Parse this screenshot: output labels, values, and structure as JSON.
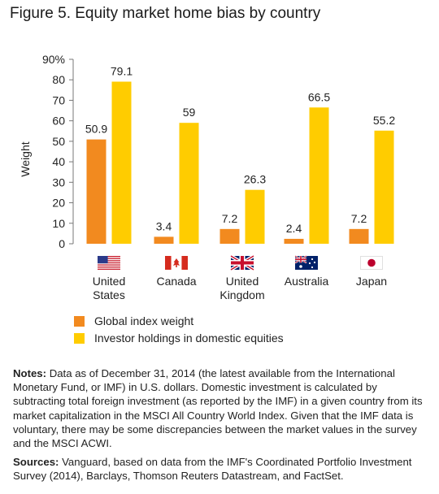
{
  "figure": {
    "title": "Figure 5. Equity market home bias by country"
  },
  "chart_data": {
    "type": "bar",
    "ylabel": "Weight",
    "ylim": [
      0,
      90
    ],
    "yticks": [
      "0",
      "10",
      "20",
      "30",
      "40",
      "50",
      "60",
      "70",
      "80",
      "90%"
    ],
    "categories": [
      {
        "lines": [
          "United",
          "States"
        ],
        "flag": "us-flag-icon"
      },
      {
        "lines": [
          "Canada"
        ],
        "flag": "canada-flag-icon"
      },
      {
        "lines": [
          "United",
          "Kingdom"
        ],
        "flag": "uk-flag-icon"
      },
      {
        "lines": [
          "Australia"
        ],
        "flag": "australia-flag-icon"
      },
      {
        "lines": [
          "Japan"
        ],
        "flag": "japan-flag-icon"
      }
    ],
    "series": [
      {
        "name": "Global index weight",
        "color": "#f28a1f",
        "values": [
          50.9,
          3.4,
          7.2,
          2.4,
          7.2
        ],
        "labels": [
          "50.9",
          "3.4",
          "7.2",
          "2.4",
          "7.2"
        ]
      },
      {
        "name": "Investor holdings in domestic equities",
        "color": "#ffcc00",
        "values": [
          79.1,
          59,
          26.3,
          66.5,
          55.2
        ],
        "labels": [
          "79.1",
          "59",
          "26.3",
          "66.5",
          "55.2"
        ]
      }
    ],
    "legend": "bottom-left",
    "grid": false
  },
  "notes": {
    "notes_label": "Notes:",
    "notes_text": " Data as of December 31, 2014 (the latest available from the International Monetary Fund, or IMF) in U.S. dollars. Domestic investment is calculated by subtracting total foreign investment (as reported by the IMF) in a given country from its market capitalization in the MSCI All Country World Index. Given that the IMF data is voluntary, there may be some discrepancies between the market values in the survey and the MSCI ACWI.",
    "sources_label": "Sources:",
    "sources_text": " Vanguard, based on data from the IMF's Coordinated Portfolio Investment Survey (2014), Barclays, Thomson Reuters Datastream, and FactSet."
  }
}
